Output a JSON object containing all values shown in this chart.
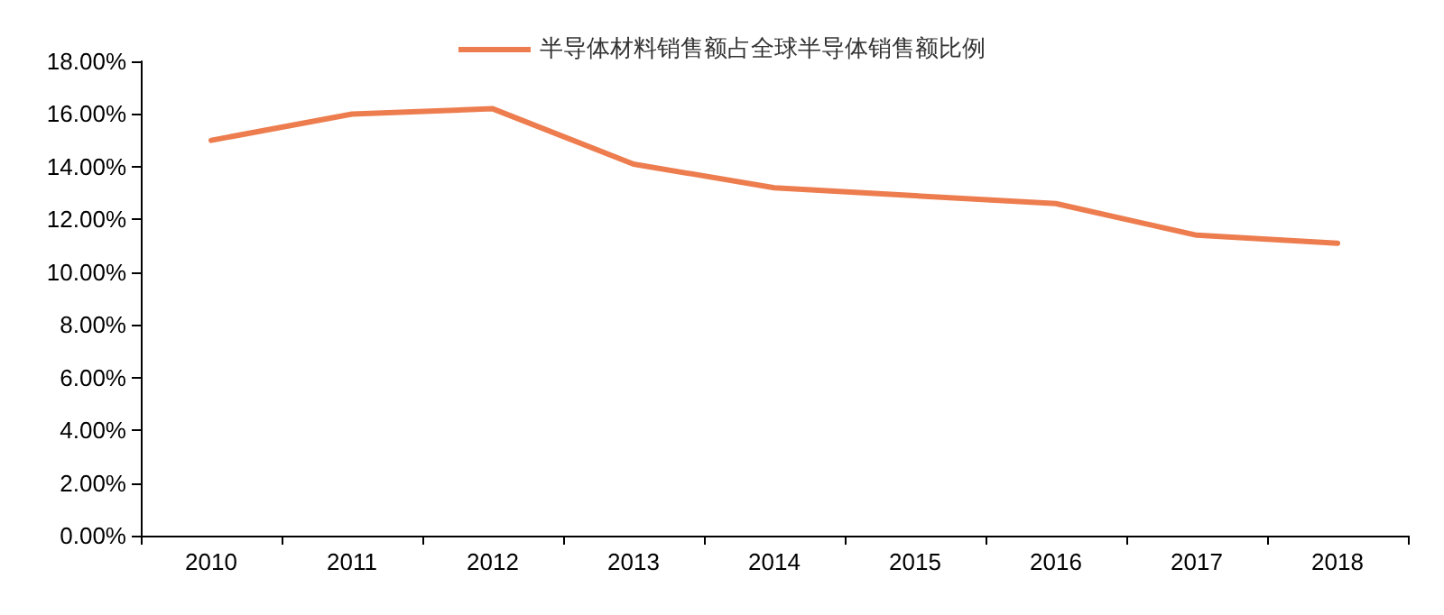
{
  "chart_data": {
    "type": "line",
    "categories": [
      "2010",
      "2011",
      "2012",
      "2013",
      "2014",
      "2015",
      "2016",
      "2017",
      "2018"
    ],
    "series": [
      {
        "name": "半导体材料销售额占全球半导体销售额比例",
        "color": "#ed7d4f",
        "values": [
          15.0,
          16.0,
          16.2,
          14.1,
          13.2,
          12.9,
          12.6,
          11.4,
          11.1
        ]
      }
    ],
    "ylim": [
      0,
      18
    ],
    "yticks": [
      {
        "value": 0,
        "label": "0.00%"
      },
      {
        "value": 2,
        "label": "2.00%"
      },
      {
        "value": 4,
        "label": "4.00%"
      },
      {
        "value": 6,
        "label": "6.00%"
      },
      {
        "value": 8,
        "label": "8.00%"
      },
      {
        "value": 10,
        "label": "10.00%"
      },
      {
        "value": 12,
        "label": "12.00%"
      },
      {
        "value": 14,
        "label": "14.00%"
      },
      {
        "value": 16,
        "label": "16.00%"
      },
      {
        "value": 18,
        "label": "18.00%"
      }
    ],
    "grid": false,
    "legend": "top",
    "marker": "none",
    "line_style": "solid"
  }
}
